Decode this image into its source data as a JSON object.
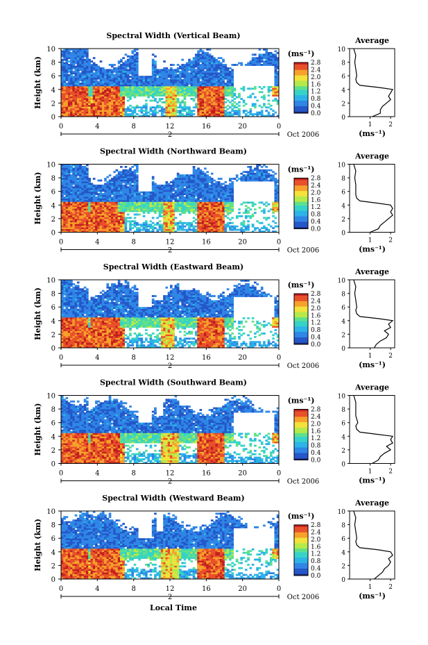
{
  "figure": {
    "xlabel": "Local Time",
    "date_label": "Oct 2006",
    "day_marker": "2",
    "unit_label": "(ms⁻¹)",
    "avg_title": "Average",
    "colormap": [
      "#1e2a78",
      "#2457c9",
      "#2f86e6",
      "#2bb3e8",
      "#36d3c8",
      "#5fe08a",
      "#b6ea4a",
      "#f2e23a",
      "#f7a02a",
      "#e8502a",
      "#c21f1f"
    ]
  },
  "chart_data": [
    {
      "type": "heatmap",
      "title": "Spectral Width (Vertical Beam)",
      "xlabel": "",
      "ylabel": "Height (km)",
      "x_ticks": [
        "0",
        "4",
        "8",
        "12",
        "16",
        "20",
        "0"
      ],
      "y_ticks": [
        "0",
        "2",
        "4",
        "6",
        "8",
        "10"
      ],
      "xlim": [
        0,
        24
      ],
      "ylim": [
        0,
        10
      ],
      "colorbar": {
        "label": "(ms⁻¹)",
        "ticks": [
          "0.0",
          "0.4",
          "0.8",
          "1.2",
          "1.6",
          "2.0",
          "2.4",
          "2.8"
        ],
        "range": [
          0,
          2.8
        ]
      },
      "features": {
        "high_layer_top_km": 4.5,
        "high_blocks_hours": [
          [
            0,
            3
          ],
          [
            3.5,
            6.5
          ],
          [
            15,
            18
          ]
        ],
        "mid_patch_hours": [
          [
            11.5,
            12.8
          ]
        ]
      },
      "profile": {
        "title": "Average",
        "xlabel": "(ms⁻¹)",
        "x_ticks": [
          "1",
          "2"
        ],
        "xlim": [
          0,
          2.2
        ],
        "ylim": [
          0,
          10
        ],
        "height_km": [
          0,
          0.5,
          1,
          1.5,
          2,
          2.5,
          3,
          3.5,
          4,
          4.3,
          4.6,
          5,
          5.5,
          6,
          7,
          8,
          9,
          10
        ],
        "values": [
          1.1,
          1.5,
          1.5,
          1.6,
          1.8,
          2.0,
          1.9,
          2.0,
          2.1,
          1.4,
          0.5,
          0.35,
          0.3,
          0.35,
          0.3,
          0.25,
          0.3,
          0.2
        ]
      }
    },
    {
      "type": "heatmap",
      "title": "Spectral Width (Northward Beam)",
      "xlabel": "",
      "ylabel": "Height (km)",
      "x_ticks": [
        "0",
        "4",
        "8",
        "12",
        "16",
        "20",
        "0"
      ],
      "y_ticks": [
        "0",
        "2",
        "4",
        "6",
        "8",
        "10"
      ],
      "xlim": [
        0,
        24
      ],
      "ylim": [
        0,
        10
      ],
      "colorbar": {
        "label": "(ms⁻¹)",
        "ticks": [
          "0.0",
          "0.4",
          "0.8",
          "1.2",
          "1.6",
          "2.0",
          "2.4",
          "2.8"
        ],
        "range": [
          0,
          2.8
        ]
      },
      "features": {
        "high_layer_top_km": 4.5,
        "high_blocks_hours": [
          [
            0,
            3
          ],
          [
            3.3,
            6.3
          ],
          [
            15,
            18
          ]
        ],
        "mid_patch_hours": [
          [
            11.2,
            12.5
          ]
        ]
      },
      "profile": {
        "title": "Average",
        "xlabel": "(ms⁻¹)",
        "x_ticks": [
          "1",
          "2"
        ],
        "xlim": [
          0,
          2.2
        ],
        "ylim": [
          0,
          10
        ],
        "height_km": [
          0,
          0.5,
          1,
          1.5,
          2,
          2.5,
          3,
          3.5,
          4,
          4.3,
          4.6,
          5,
          5.5,
          6,
          7,
          8,
          9,
          10
        ],
        "values": [
          1.0,
          1.4,
          1.5,
          1.7,
          1.9,
          2.1,
          2.0,
          2.1,
          2.0,
          1.3,
          0.5,
          0.35,
          0.3,
          0.3,
          0.3,
          0.25,
          0.3,
          0.2
        ]
      }
    },
    {
      "type": "heatmap",
      "title": "Spectral Width (Eastward Beam)",
      "xlabel": "",
      "ylabel": "Height (km)",
      "x_ticks": [
        "0",
        "4",
        "8",
        "12",
        "16",
        "20",
        "0"
      ],
      "y_ticks": [
        "0",
        "2",
        "4",
        "6",
        "8",
        "10"
      ],
      "xlim": [
        0,
        24
      ],
      "ylim": [
        0,
        10
      ],
      "colorbar": {
        "label": "(ms⁻¹)",
        "ticks": [
          "0.0",
          "0.4",
          "0.8",
          "1.2",
          "1.6",
          "2.0",
          "2.4",
          "2.8"
        ],
        "range": [
          0,
          2.8
        ]
      },
      "features": {
        "high_layer_top_km": 4.5,
        "high_blocks_hours": [
          [
            0,
            3
          ],
          [
            3.3,
            6.5
          ],
          [
            15,
            18
          ]
        ],
        "mid_patch_hours": [
          [
            11,
            12.5
          ]
        ]
      },
      "profile": {
        "title": "Average",
        "xlabel": "(ms⁻¹)",
        "x_ticks": [
          "1",
          "2"
        ],
        "xlim": [
          0,
          2.2
        ],
        "ylim": [
          0,
          10
        ],
        "height_km": [
          0,
          0.5,
          1,
          1.5,
          2,
          2.5,
          3,
          3.5,
          4,
          4.3,
          4.6,
          5,
          5.5,
          6,
          7,
          8,
          9,
          10
        ],
        "values": [
          1.2,
          1.3,
          1.5,
          1.8,
          1.9,
          1.7,
          2.0,
          1.9,
          2.1,
          1.4,
          0.5,
          0.35,
          0.3,
          0.35,
          0.3,
          0.25,
          0.3,
          0.2
        ]
      }
    },
    {
      "type": "heatmap",
      "title": "Spectral Width (Southward Beam)",
      "xlabel": "",
      "ylabel": "Height (km)",
      "x_ticks": [
        "0",
        "4",
        "8",
        "12",
        "16",
        "20",
        "0"
      ],
      "y_ticks": [
        "0",
        "2",
        "4",
        "6",
        "8",
        "10"
      ],
      "xlim": [
        0,
        24
      ],
      "ylim": [
        0,
        10
      ],
      "colorbar": {
        "label": "(ms⁻¹)",
        "ticks": [
          "0.0",
          "0.4",
          "0.8",
          "1.2",
          "1.6",
          "2.0",
          "2.4",
          "2.8"
        ],
        "range": [
          0,
          2.8
        ]
      },
      "features": {
        "high_layer_top_km": 4.5,
        "high_blocks_hours": [
          [
            0,
            3
          ],
          [
            3.3,
            6.5
          ],
          [
            15,
            18
          ]
        ],
        "mid_patch_hours": [
          [
            11,
            13
          ]
        ]
      },
      "profile": {
        "title": "Average",
        "xlabel": "(ms⁻¹)",
        "x_ticks": [
          "1",
          "2"
        ],
        "xlim": [
          0,
          2.2
        ],
        "ylim": [
          0,
          10
        ],
        "height_km": [
          0,
          0.5,
          1,
          1.5,
          2,
          2.5,
          3,
          3.5,
          4,
          4.3,
          4.6,
          5,
          5.5,
          6,
          7,
          8,
          9,
          10
        ],
        "values": [
          1.1,
          1.4,
          1.5,
          1.7,
          2.0,
          1.8,
          2.1,
          2.0,
          2.1,
          1.3,
          0.5,
          0.35,
          0.3,
          0.4,
          0.3,
          0.3,
          0.3,
          0.2
        ]
      }
    },
    {
      "type": "heatmap",
      "title": "Spectral Width (Westward Beam)",
      "xlabel": "Local Time",
      "ylabel": "Height (km)",
      "x_ticks": [
        "0",
        "4",
        "8",
        "12",
        "16",
        "20",
        "0"
      ],
      "y_ticks": [
        "0",
        "2",
        "4",
        "6",
        "8",
        "10"
      ],
      "xlim": [
        0,
        24
      ],
      "ylim": [
        0,
        10
      ],
      "colorbar": {
        "label": "(ms⁻¹)",
        "ticks": [
          "0.0",
          "0.4",
          "0.8",
          "1.2",
          "1.6",
          "2.0",
          "2.4",
          "2.8"
        ],
        "range": [
          0,
          2.8
        ]
      },
      "features": {
        "high_layer_top_km": 4.5,
        "high_blocks_hours": [
          [
            0,
            3
          ],
          [
            3.3,
            6.5
          ],
          [
            15,
            18
          ]
        ],
        "mid_patch_hours": [
          [
            11,
            13
          ]
        ]
      },
      "profile": {
        "title": "Average",
        "xlabel": "(ms⁻¹)",
        "x_ticks": [
          "1",
          "2"
        ],
        "xlim": [
          0,
          2.2
        ],
        "ylim": [
          0,
          10
        ],
        "height_km": [
          0,
          0.5,
          1,
          1.5,
          2,
          2.5,
          3,
          3.5,
          4,
          4.3,
          4.6,
          5,
          5.5,
          6,
          7,
          8,
          9,
          10
        ],
        "values": [
          1.2,
          1.4,
          1.6,
          1.7,
          1.9,
          2.0,
          1.9,
          2.1,
          2.0,
          1.4,
          0.5,
          0.35,
          0.3,
          0.35,
          0.3,
          0.25,
          0.3,
          0.2
        ]
      }
    }
  ]
}
